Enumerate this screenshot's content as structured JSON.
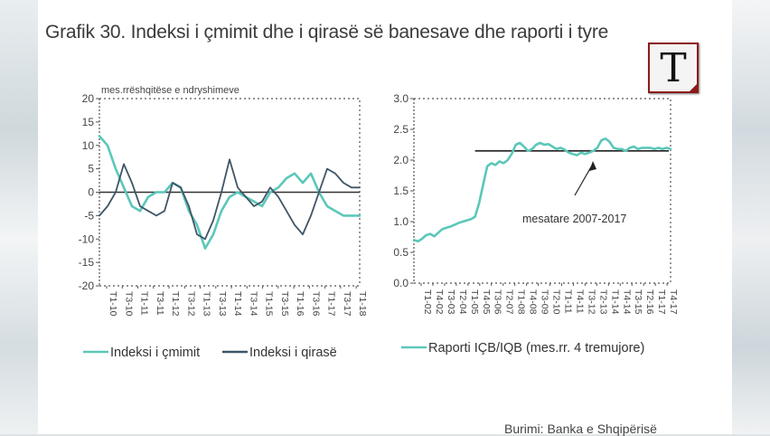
{
  "title": "Grafik 30. Indeksi i çmimit dhe i qirasë së banesave dhe raporti i tyre",
  "source": "Burimi: Banka e Shqipërisë",
  "logo_letter": "T",
  "colors": {
    "teal": "#5cc7b9",
    "navy": "#3f5566",
    "black": "#222222"
  },
  "chart_data": [
    {
      "type": "line",
      "unit_label": "mes.rrëshqitëse e ndryshimeve",
      "ylim": [
        -20,
        20
      ],
      "yticks": [
        20,
        15,
        10,
        5,
        0,
        -5,
        -10,
        -15,
        -20
      ],
      "xticks": [
        "T1-10",
        "T3-10",
        "T1-11",
        "T3-11",
        "T1-12",
        "T3-12",
        "T1-13",
        "T3-13",
        "T1-14",
        "T3-14",
        "T1-15",
        "T3-15",
        "T1-16",
        "T3-16",
        "T1-17",
        "T3-17",
        "T1-18"
      ],
      "x_count": 33,
      "grid": false,
      "legend_position": "bottom",
      "series": [
        {
          "name": "Indeksi i çmimit",
          "color": "#5cc7b9",
          "values": [
            12,
            10,
            5,
            1,
            -3,
            -4,
            -1,
            0,
            0,
            2,
            1,
            -4,
            -7,
            -12,
            -9,
            -4,
            -1,
            0,
            -1,
            -2,
            -3,
            0,
            1,
            3,
            4,
            2,
            4,
            0,
            -3,
            -4,
            -5,
            -5,
            -5
          ]
        },
        {
          "name": "Indeksi i qirasë",
          "color": "#3f5566",
          "values": [
            -5,
            -3,
            0,
            6,
            2,
            -3,
            -4,
            -5,
            -4,
            2,
            1,
            -3,
            -9,
            -10,
            -6,
            0,
            7,
            1,
            -1,
            -3,
            -2,
            1,
            -1,
            -4,
            -7,
            -9,
            -5,
            0,
            5,
            4,
            2,
            1,
            1
          ]
        }
      ]
    },
    {
      "type": "line",
      "ylim": [
        0,
        3
      ],
      "yticks": [
        "3.0",
        "2.5",
        "2.0",
        "1.5",
        "1.0",
        "0.5",
        "0.0"
      ],
      "xticks": [
        "T1-02",
        "T4-02",
        "T3-03",
        "T2-04",
        "T1-05",
        "T4-05",
        "T3-06",
        "T2-07",
        "T1-08",
        "T4-08",
        "T3-09",
        "T2-10",
        "T1-11",
        "T4-11",
        "T3-12",
        "T2-13",
        "T1-14",
        "T4-14",
        "T3-15",
        "T2-16",
        "T1-17",
        "T4-17"
      ],
      "x_count": 64,
      "grid": false,
      "legend_position": "bottom",
      "series": [
        {
          "name": "Raporti IÇB/IQB (mes.rr. 4 tremujore)",
          "color": "#5cc7b9",
          "values": [
            0.7,
            0.68,
            0.72,
            0.78,
            0.8,
            0.76,
            0.82,
            0.88,
            0.9,
            0.92,
            0.95,
            0.98,
            1.0,
            1.02,
            1.04,
            1.08,
            1.3,
            1.6,
            1.9,
            1.95,
            1.92,
            1.98,
            1.95,
            2.0,
            2.1,
            2.25,
            2.28,
            2.22,
            2.15,
            2.18,
            2.25,
            2.28,
            2.25,
            2.26,
            2.22,
            2.18,
            2.2,
            2.17,
            2.12,
            2.1,
            2.08,
            2.12,
            2.1,
            2.12,
            2.15,
            2.2,
            2.32,
            2.35,
            2.3,
            2.2,
            2.18,
            2.18,
            2.15,
            2.2,
            2.22,
            2.18,
            2.2,
            2.2,
            2.2,
            2.18,
            2.2,
            2.18,
            2.2,
            2.18
          ]
        }
      ],
      "reference_line": {
        "value": 2.15,
        "label": "mesatare 2007-2017"
      }
    }
  ]
}
